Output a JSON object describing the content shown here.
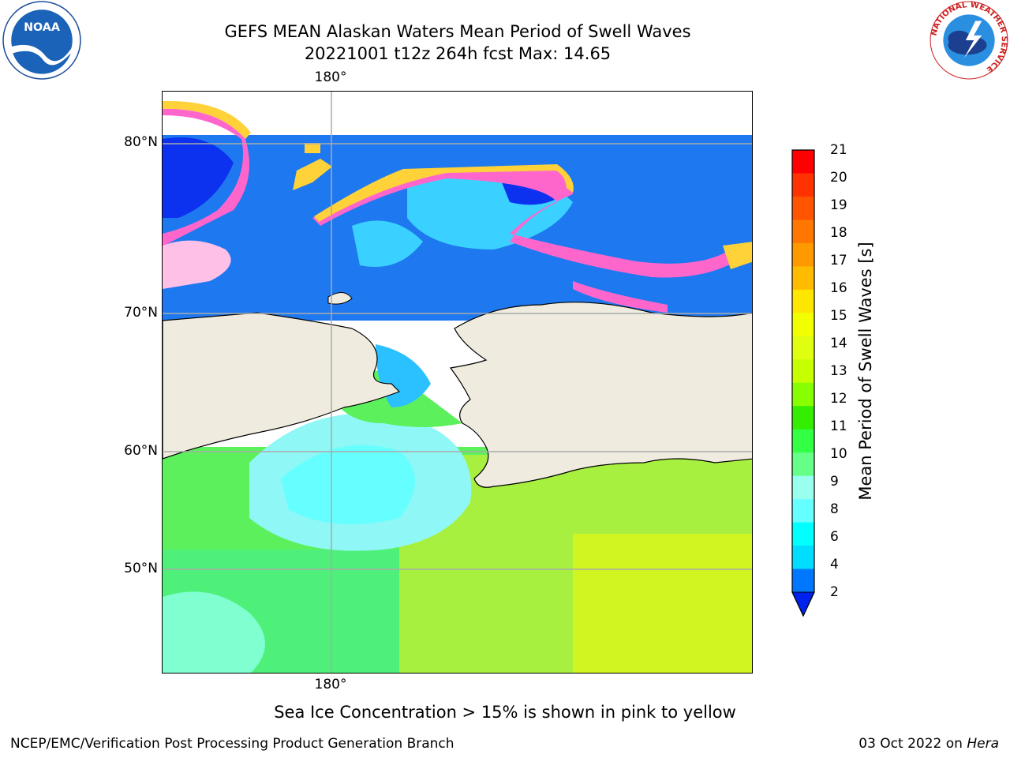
{
  "header": {
    "title_line1": "GEFS MEAN Alaskan Waters Mean Period of Swell Waves",
    "title_line2": "20221001 t12z 264h fcst   Max: 14.65"
  },
  "logos": {
    "left": {
      "icon": "noaa-logo-icon",
      "text": "NOAA"
    },
    "right": {
      "icon": "national-weather-service-logo-icon",
      "text": "NATIONAL WEATHER SERVICE"
    }
  },
  "map": {
    "lat_labels": [
      "80°N",
      "70°N",
      "60°N",
      "50°N"
    ],
    "lon_label_top": "180°",
    "lon_label_bottom": "180°",
    "colors": {
      "land": "#efecdf",
      "ocean_low": "#1e78f0",
      "ocean_mid": "#7ff7ff",
      "ocean_high": "#66ff66",
      "ice": "#ff66cc",
      "gridline": "#aaaaaa"
    }
  },
  "colorbar": {
    "label": "Mean Period of Swell Waves [s]",
    "ticks": [
      "21",
      "20",
      "19",
      "18",
      "17",
      "16",
      "15",
      "14",
      "13",
      "12",
      "11",
      "10",
      "9",
      "8",
      "6",
      "4",
      "2"
    ],
    "colors": [
      "#ff0000",
      "#ff3300",
      "#ff5500",
      "#ff7700",
      "#ff9900",
      "#ffbb00",
      "#ffe600",
      "#f2ff00",
      "#e0ff10",
      "#c8ff00",
      "#88ff00",
      "#33ee00",
      "#33ff44",
      "#66ff88",
      "#99ffee",
      "#66ffff",
      "#00ffff",
      "#00ddff",
      "#0077ff"
    ],
    "extend_color": "#0022ee"
  },
  "notes": {
    "ice_note": "Sea Ice Concentration > 15% is shown in pink to yellow"
  },
  "footer": {
    "left": "NCEP/EMC/Verification Post Processing Product Generation Branch",
    "date": "03 Oct 2022 on ",
    "machine": "Hera"
  }
}
